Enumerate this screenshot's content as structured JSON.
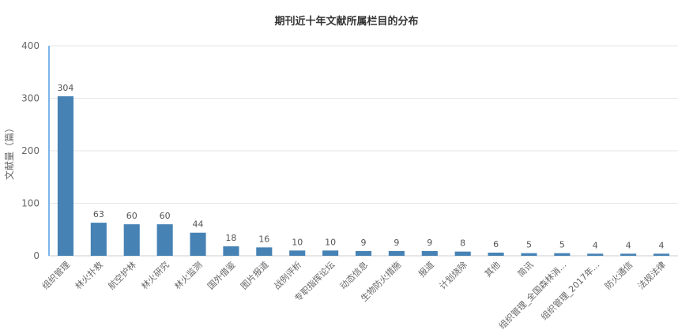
{
  "chart_data": {
    "type": "bar",
    "title": "期刊近十年文献所属栏目的分布",
    "ylabel": "文献量（篇）",
    "xlabel": "",
    "ylim": [
      0,
      400
    ],
    "yticks": [
      0,
      100,
      200,
      300,
      400
    ],
    "grid": true,
    "legend": "none",
    "bar_color": "#4682b4",
    "categories": [
      "组织管理",
      "林火扑救",
      "航空护林",
      "林火研究",
      "林火监测",
      "国外借鉴",
      "图片报道",
      "战例评析",
      "专职指挥论坛",
      "动态信息",
      "生物防火措施",
      "报道",
      "计划烧除",
      "其他",
      "简讯",
      "组织管理_全国森林消...",
      "组织管理_2017年...",
      "防火通信",
      "法规法律"
    ],
    "values": [
      304,
      63,
      60,
      60,
      44,
      18,
      16,
      10,
      10,
      9,
      9,
      9,
      8,
      6,
      5,
      5,
      4,
      4,
      4
    ]
  }
}
